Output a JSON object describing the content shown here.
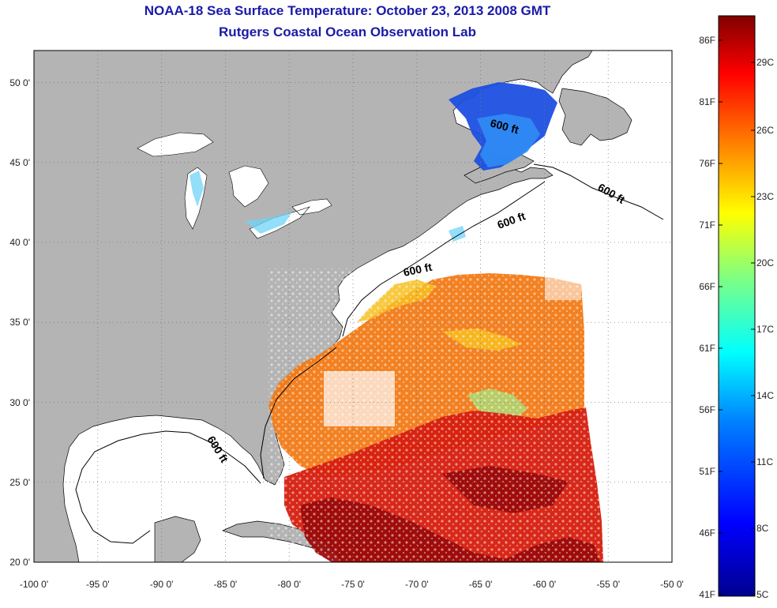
{
  "header": {
    "title": "NOAA-18 Sea Surface Temperature:  October 23, 2013 2008 GMT",
    "subtitle": "Rutgers Coastal Ocean Observation Lab"
  },
  "map": {
    "lon_range": [
      -100,
      -50
    ],
    "lat_range": [
      20,
      52
    ],
    "grid": "dotted",
    "land_color": "#b4b4b4",
    "ocean_no_data_color": "#ffffff",
    "lat_labels": [
      "50 0'",
      "45 0'",
      "40 0'",
      "35 0'",
      "30 0'",
      "25 0'",
      "20 0'"
    ],
    "lon_labels": [
      "-100 0'",
      "-95 0'",
      "-90 0'",
      "-85 0'",
      "-80 0'",
      "-75 0'",
      "-70 0'",
      "-65 0'",
      "-60 0'",
      "-55 0'",
      "-50 0'"
    ],
    "isobath_label": "600 ft"
  },
  "colorbar": {
    "fahrenheit_labels": [
      "86F",
      "81F",
      "76F",
      "71F",
      "66F",
      "61F",
      "56F",
      "51F",
      "46F",
      "41F"
    ],
    "celsius_labels": [
      "29C",
      "26C",
      "23C",
      "20C",
      "17C",
      "14C",
      "11C",
      "8C",
      "5C"
    ],
    "min_label_f": "41F",
    "min_label_c": "5C",
    "colors": [
      "#00008f",
      "#0000ff",
      "#0080ff",
      "#00ffff",
      "#80ff80",
      "#ffff00",
      "#ff8000",
      "#ff0000",
      "#800000"
    ]
  }
}
